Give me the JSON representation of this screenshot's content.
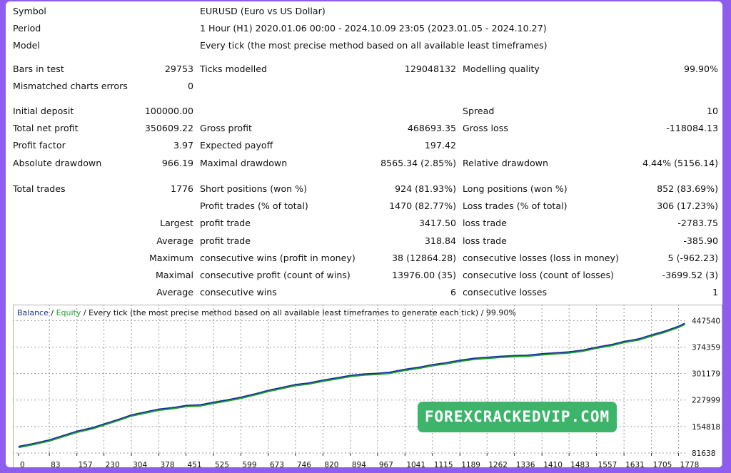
{
  "header": [
    {
      "label": "Symbol",
      "value": "EURUSD (Euro vs US Dollar)"
    },
    {
      "label": "Period",
      "value": "1 Hour (H1) 2020.01.06 00:00 - 2024.10.09 23:05 (2023.01.05 - 2024.10.27)"
    },
    {
      "label": "Model",
      "value": "Every tick (the most precise method based on all available least timeframes)"
    }
  ],
  "bars": {
    "label": "Bars in test",
    "value": "29753"
  },
  "ticks": {
    "label": "Ticks modelled",
    "value": "129048132"
  },
  "quality": {
    "label": "Modelling quality",
    "value": "99.90%"
  },
  "mismatched": {
    "label": "Mismatched charts errors",
    "value": "0"
  },
  "initial_deposit": {
    "label": "Initial deposit",
    "value": "100000.00"
  },
  "spread": {
    "label": "Spread",
    "value": "10"
  },
  "total_net_profit": {
    "label": "Total net profit",
    "value": "350609.22"
  },
  "gross_profit": {
    "label": "Gross profit",
    "value": "468693.35"
  },
  "gross_loss": {
    "label": "Gross loss",
    "value": "-118084.13"
  },
  "profit_factor": {
    "label": "Profit factor",
    "value": "3.97"
  },
  "expected_payoff": {
    "label": "Expected payoff",
    "value": "197.42"
  },
  "abs_drawdown": {
    "label": "Absolute drawdown",
    "value": "966.19"
  },
  "max_drawdown": {
    "label": "Maximal drawdown",
    "value": "8565.34 (2.85%)"
  },
  "rel_drawdown": {
    "label": "Relative drawdown",
    "value": "4.44% (5156.14)"
  },
  "total_trades": {
    "label": "Total trades",
    "value": "1776"
  },
  "short_pos": {
    "label": "Short positions (won %)",
    "value": "924 (81.93%)"
  },
  "long_pos": {
    "label": "Long positions (won %)",
    "value": "852 (83.69%)"
  },
  "profit_trades": {
    "label": "Profit trades (% of total)",
    "value": "1470 (82.77%)"
  },
  "loss_trades": {
    "label": "Loss trades (% of total)",
    "value": "306 (17.23%)"
  },
  "largest": {
    "prefix": "Largest",
    "profit_label": "profit trade",
    "profit_value": "3417.50",
    "loss_label": "loss trade",
    "loss_value": "-2783.75"
  },
  "average": {
    "prefix": "Average",
    "profit_label": "profit trade",
    "profit_value": "318.84",
    "loss_label": "loss trade",
    "loss_value": "-385.90"
  },
  "maximum": {
    "prefix": "Maximum",
    "profit_label": "consecutive wins (profit in money)",
    "profit_value": "38 (12864.28)",
    "loss_label": "consecutive losses (loss in money)",
    "loss_value": "5 (-962.23)"
  },
  "maximal": {
    "prefix": "Maximal",
    "profit_label": "consecutive profit (count of wins)",
    "profit_value": "13976.00 (35)",
    "loss_label": "consecutive loss (count of losses)",
    "loss_value": "-3699.52 (3)"
  },
  "average2": {
    "prefix": "Average",
    "profit_label": "consecutive wins",
    "profit_value": "6",
    "loss_label": "consecutive losses",
    "loss_value": "1"
  },
  "chart_caption": {
    "balance": "Balance",
    "sep1": " / ",
    "equity": "Equity",
    "rest": " / Every tick (the most precise method based on all available least timeframes to generate each tick) / 99.90%"
  },
  "watermark": "FOREXCRACKEDVIP.COM",
  "colors": {
    "balance": "#1a2f9e",
    "equity": "#1f9e2f",
    "frame": "#8f5cf0"
  },
  "chart_data": {
    "type": "line",
    "x_ticks": [
      0,
      83,
      157,
      230,
      304,
      378,
      451,
      525,
      599,
      673,
      746,
      820,
      894,
      967,
      1041,
      1115,
      1189,
      1262,
      1336,
      1410,
      1483,
      1557,
      1631,
      1705,
      1778
    ],
    "y_ticks": [
      81638,
      154818,
      227999,
      301179,
      374359,
      447540
    ],
    "xlim": [
      0,
      1800
    ],
    "ylim": [
      81638,
      460000
    ],
    "grid": true,
    "series": [
      {
        "name": "Balance",
        "x": [
          0,
          40,
          83,
          120,
          157,
          200,
          230,
          270,
          304,
          340,
          378,
          420,
          451,
          490,
          525,
          560,
          599,
          640,
          673,
          710,
          746,
          780,
          820,
          860,
          894,
          930,
          967,
          1000,
          1041,
          1080,
          1115,
          1150,
          1189,
          1230,
          1262,
          1300,
          1336,
          1370,
          1410,
          1450,
          1483,
          1520,
          1557,
          1600,
          1631,
          1670,
          1705,
          1740,
          1778,
          1795
        ],
        "y": [
          100000,
          108000,
          118000,
          130000,
          142000,
          152000,
          162000,
          175000,
          187000,
          195000,
          203000,
          208000,
          213000,
          215000,
          222000,
          228000,
          236000,
          246000,
          255000,
          263000,
          271000,
          275000,
          283000,
          290000,
          296000,
          300000,
          302000,
          305000,
          313000,
          319000,
          326000,
          331000,
          338000,
          344000,
          346000,
          349000,
          351000,
          352000,
          356000,
          359000,
          361000,
          366000,
          374000,
          382000,
          390000,
          397000,
          408000,
          418000,
          432000,
          440000
        ]
      }
    ]
  }
}
